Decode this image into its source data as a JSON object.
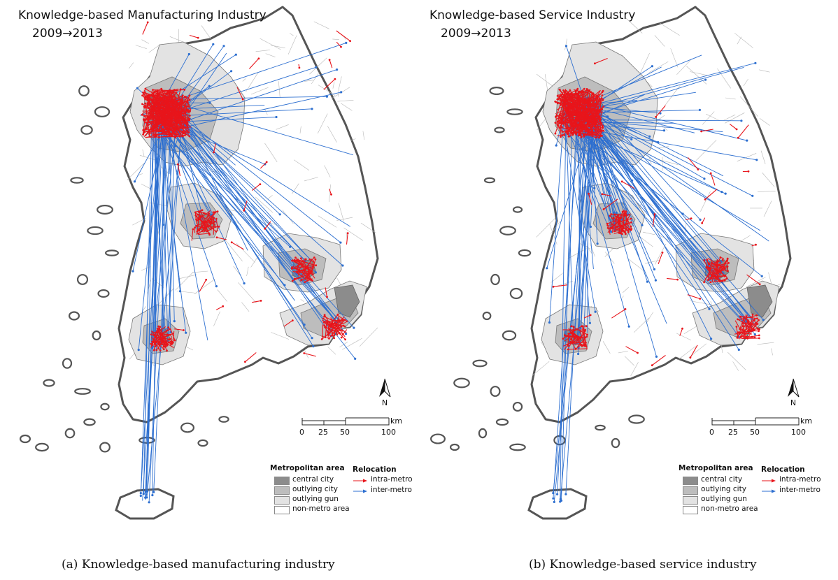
{
  "colors": {
    "central_city": "#8c8c8c",
    "outlying_city": "#bdbdbd",
    "outlying_gun": "#e3e3e3",
    "non_metro": "#ffffff",
    "intra_metro": "#e8151b",
    "inter_metro": "#2d6fd0",
    "coast": "#555555"
  },
  "panels": [
    {
      "title": "Knowledge-based Manufacturing Industry",
      "period": "2009→2013",
      "caption": "(a) Knowledge-based manufacturing industry"
    },
    {
      "title": "Knowledge-based Service Industry",
      "period": "2009→2013",
      "caption": "(b) Knowledge-based service industry"
    }
  ],
  "north_label": "N",
  "scale": {
    "ticks": [
      "0",
      "25",
      "50",
      "100"
    ],
    "unit": "km"
  },
  "legend": {
    "metro_title": "Metropolitan area",
    "relocation_title": "Relocation",
    "metro_items": [
      {
        "label": "central city",
        "icon": "central-city-swatch"
      },
      {
        "label": "outlying city",
        "icon": "outlying-city-swatch"
      },
      {
        "label": "outlying gun",
        "icon": "outlying-gun-swatch"
      },
      {
        "label": "non-metro area",
        "icon": "non-metro-swatch"
      }
    ],
    "relocation_items": [
      {
        "label": "intra-metro",
        "icon": "red-arrow-icon"
      },
      {
        "label": "inter-metro",
        "icon": "blue-arrow-icon"
      }
    ]
  }
}
